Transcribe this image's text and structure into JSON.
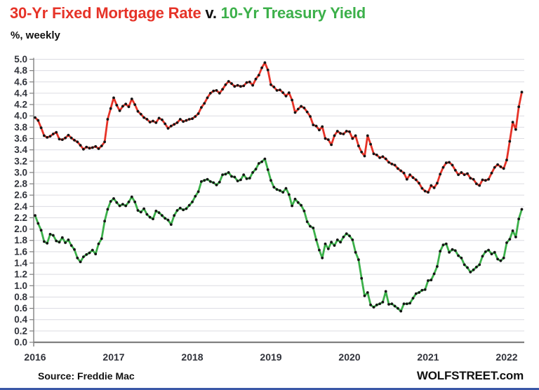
{
  "title": {
    "part1": "30-Yr Fixed Mortgage Rate",
    "separator": " v. ",
    "part2": "10-Yr Treasury Yield"
  },
  "subtitle": "%, weekly",
  "footer": {
    "source": "Source: Freddie Mac",
    "brand": "WOLFSTREET.com"
  },
  "colors": {
    "mortgage_red": "#e63328",
    "treasury_green": "#3cb04a",
    "marker_black": "#151515",
    "grid_gray": "#dcdce2",
    "axis_gray": "#808080",
    "tick_label": "#31333b",
    "title_black": "#111111",
    "bottom_rule_blue": "#3a57a7"
  },
  "chart_data": {
    "type": "line",
    "title": "30-Yr Fixed Mortgage Rate v. 10-Yr Treasury Yield",
    "ylabel": "%, weekly",
    "ylim": [
      0.0,
      5.0
    ],
    "y_tick_step": 0.2,
    "y_tick_labels": [
      "0.0",
      "0.2",
      "0.4",
      "0.6",
      "0.8",
      "1.0",
      "1.2",
      "1.4",
      "1.6",
      "1.8",
      "2.0",
      "2.2",
      "2.4",
      "2.6",
      "2.8",
      "3.0",
      "3.2",
      "3.4",
      "3.6",
      "3.8",
      "4.0",
      "4.2",
      "4.4",
      "4.6",
      "4.8",
      "5.0"
    ],
    "x_ticks": [
      2016,
      2017,
      2018,
      2019,
      2020,
      2021,
      2022
    ],
    "x_start": 2016.0,
    "x_step_years": 0.038461,
    "grid": "horizontal",
    "legend": "none (series identified by title colors)",
    "series": [
      {
        "key": "mortgage-rate",
        "name": "30-Yr Fixed Mortgage Rate",
        "color": "#e63328",
        "values": [
          3.97,
          3.92,
          3.79,
          3.65,
          3.62,
          3.64,
          3.68,
          3.71,
          3.59,
          3.58,
          3.61,
          3.66,
          3.61,
          3.57,
          3.54,
          3.48,
          3.41,
          3.45,
          3.43,
          3.44,
          3.46,
          3.42,
          3.47,
          3.54,
          3.94,
          4.13,
          4.32,
          4.19,
          4.09,
          4.17,
          4.21,
          4.16,
          4.3,
          4.2,
          4.08,
          4.03,
          3.97,
          3.94,
          3.89,
          3.91,
          3.88,
          3.96,
          3.93,
          3.86,
          3.78,
          3.82,
          3.85,
          3.88,
          3.94,
          3.9,
          3.92,
          3.94,
          3.95,
          3.99,
          4.04,
          4.15,
          4.22,
          4.32,
          4.4,
          4.44,
          4.45,
          4.4,
          4.47,
          4.55,
          4.61,
          4.57,
          4.52,
          4.54,
          4.52,
          4.53,
          4.59,
          4.6,
          4.54,
          4.65,
          4.72,
          4.85,
          4.94,
          4.81,
          4.55,
          4.51,
          4.45,
          4.46,
          4.41,
          4.35,
          4.41,
          4.28,
          4.06,
          4.12,
          4.17,
          4.14,
          4.07,
          3.99,
          3.84,
          3.82,
          3.75,
          3.81,
          3.6,
          3.58,
          3.49,
          3.65,
          3.73,
          3.69,
          3.68,
          3.73,
          3.72,
          3.6,
          3.65,
          3.47,
          3.36,
          3.29,
          3.65,
          3.5,
          3.33,
          3.31,
          3.26,
          3.28,
          3.24,
          3.18,
          3.15,
          3.13,
          3.07,
          3.03,
          2.99,
          2.88,
          2.96,
          2.91,
          2.87,
          2.81,
          2.72,
          2.67,
          2.65,
          2.77,
          2.73,
          2.81,
          2.97,
          3.09,
          3.17,
          3.18,
          3.13,
          3.04,
          2.96,
          3.0,
          2.96,
          2.98,
          2.9,
          2.88,
          2.8,
          2.77,
          2.87,
          2.86,
          2.88,
          2.99,
          3.09,
          3.14,
          3.1,
          3.07,
          3.22,
          3.55,
          3.89,
          3.76,
          4.16,
          4.42
        ]
      },
      {
        "key": "treasury-yield",
        "name": "10-Yr Treasury Yield",
        "color": "#3cb04a",
        "values": [
          2.24,
          2.1,
          1.98,
          1.78,
          1.75,
          1.91,
          1.89,
          1.79,
          1.77,
          1.85,
          1.76,
          1.81,
          1.71,
          1.64,
          1.49,
          1.42,
          1.51,
          1.55,
          1.58,
          1.63,
          1.56,
          1.74,
          1.83,
          2.14,
          2.35,
          2.49,
          2.54,
          2.47,
          2.41,
          2.44,
          2.41,
          2.48,
          2.57,
          2.48,
          2.33,
          2.3,
          2.36,
          2.26,
          2.21,
          2.18,
          2.32,
          2.29,
          2.24,
          2.19,
          2.16,
          2.08,
          2.24,
          2.33,
          2.37,
          2.34,
          2.36,
          2.42,
          2.48,
          2.58,
          2.66,
          2.84,
          2.86,
          2.88,
          2.84,
          2.82,
          2.78,
          2.83,
          2.96,
          2.97,
          3.0,
          2.93,
          2.92,
          2.85,
          2.87,
          2.96,
          2.89,
          2.9,
          3.0,
          3.06,
          3.16,
          3.19,
          3.24,
          3.05,
          2.86,
          2.74,
          2.7,
          2.68,
          2.65,
          2.72,
          2.61,
          2.41,
          2.53,
          2.47,
          2.42,
          2.32,
          2.13,
          2.05,
          2.02,
          1.81,
          1.63,
          1.49,
          1.74,
          1.65,
          1.77,
          1.71,
          1.81,
          1.77,
          1.86,
          1.92,
          1.88,
          1.81,
          1.59,
          1.46,
          1.13,
          0.82,
          0.88,
          0.66,
          0.62,
          0.66,
          0.68,
          0.71,
          0.9,
          0.67,
          0.68,
          0.64,
          0.6,
          0.55,
          0.68,
          0.68,
          0.69,
          0.78,
          0.86,
          0.88,
          0.92,
          0.93,
          1.09,
          1.1,
          1.21,
          1.34,
          1.61,
          1.72,
          1.74,
          1.59,
          1.64,
          1.62,
          1.53,
          1.49,
          1.37,
          1.32,
          1.24,
          1.28,
          1.33,
          1.37,
          1.52,
          1.6,
          1.63,
          1.56,
          1.59,
          1.47,
          1.44,
          1.49,
          1.76,
          1.82,
          1.97,
          1.86,
          2.18,
          2.35
        ]
      }
    ]
  }
}
